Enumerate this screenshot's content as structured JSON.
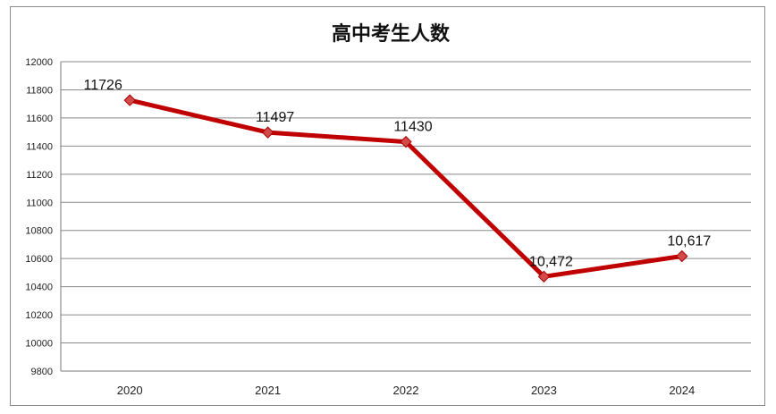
{
  "chart_data": {
    "type": "line",
    "title": "高中考生人数",
    "xlabel": "",
    "ylabel": "",
    "categories": [
      "2020",
      "2021",
      "2022",
      "2023",
      "2024"
    ],
    "series": [
      {
        "values": [
          11726,
          11497,
          11430,
          10472,
          10617
        ],
        "value_labels": [
          "11726",
          "11497",
          "11430",
          "10,472",
          "10,617"
        ],
        "color": "#C00000",
        "marker": "diamond"
      }
    ],
    "ylim": [
      9800,
      12000
    ],
    "yticks": [
      "12000",
      "11800",
      "11600",
      "11400",
      "11200",
      "11000",
      "10800",
      "10600",
      "10400",
      "10200",
      "10000",
      "9800"
    ],
    "grid": true,
    "legend": "none"
  }
}
